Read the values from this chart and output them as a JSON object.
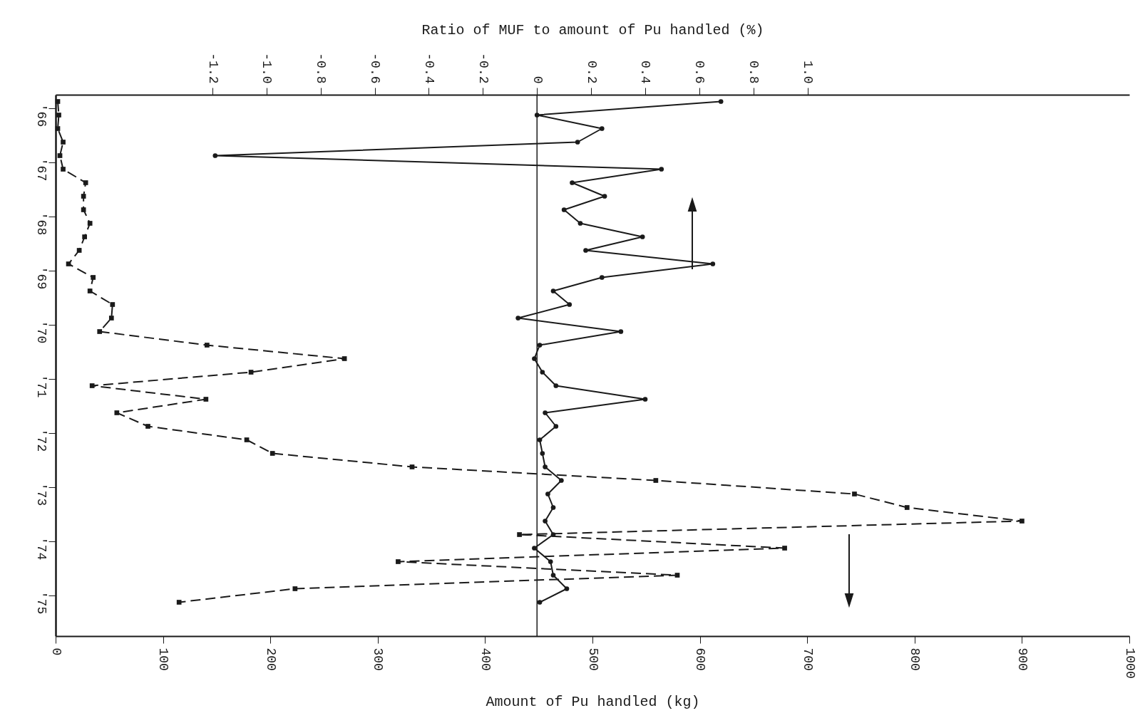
{
  "chart_data": {
    "type": "line",
    "orientation": "horizontal",
    "categories": [
      null,
      "'66",
      null,
      null,
      null,
      "'67",
      null,
      null,
      null,
      "'68",
      null,
      null,
      null,
      "'69",
      null,
      null,
      null,
      "'70",
      null,
      null,
      null,
      "'71",
      null,
      null,
      null,
      "'72",
      null,
      null,
      null,
      "'73",
      null,
      null,
      null,
      "'74",
      null,
      null,
      null,
      "'75",
      null,
      null
    ],
    "xlabel": "Amount of Pu handled (kg)",
    "x2label": "Ratio of MUF to amount of Pu handled (%)",
    "xlim": [
      0,
      1000
    ],
    "xticks": [
      0,
      100,
      200,
      300,
      400,
      500,
      600,
      700,
      800,
      900,
      1000
    ],
    "x2lim": [
      -1.78,
      2.19
    ],
    "x2ticks": [
      -1.2,
      {
        "value": -1,
        "label": "-1.0"
      },
      -0.8,
      -0.6,
      -0.4,
      -0.2,
      0,
      0.2,
      0.4,
      0.6,
      0.8,
      {
        "value": 1,
        "label": "1.0"
      }
    ],
    "series": [
      {
        "color": "#1a1a1a",
        "marker": "square",
        "line_style": "dashed",
        "values": [
          2,
          3,
          2,
          7,
          4,
          7,
          28,
          26,
          26,
          32,
          27,
          22,
          12,
          35,
          32,
          53,
          52,
          41,
          141,
          269,
          182,
          34,
          140,
          57,
          86,
          178,
          202,
          332,
          559,
          744,
          793,
          900,
          432,
          679,
          319,
          579,
          223,
          115,
          null,
          null
        ]
      },
      {
        "color": "#1a1a1a",
        "axis": "x2",
        "marker": "circle",
        "line_style": "solid",
        "values": [
          0.68,
          0.0,
          0.24,
          0.15,
          -1.19,
          0.46,
          0.13,
          0.25,
          0.1,
          0.16,
          0.39,
          0.18,
          0.65,
          0.24,
          0.06,
          0.12,
          -0.07,
          0.31,
          0.01,
          -0.01,
          0.02,
          0.07,
          0.4,
          0.03,
          0.07,
          0.01,
          0.02,
          0.03,
          0.09,
          0.04,
          0.06,
          0.03,
          0.06,
          -0.01,
          0.05,
          0.06,
          0.11,
          0.01,
          null,
          null
        ]
      }
    ],
    "ref_lines": [
      {
        "axis": "x2",
        "value": 0
      }
    ]
  }
}
